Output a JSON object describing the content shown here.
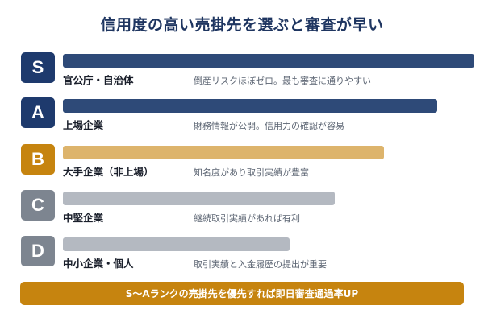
{
  "title": "信用度の高い売掛先を選ぶと審査が早い",
  "colors": {
    "navy": "#1e3a6d",
    "gold": "#c6840f",
    "gold_bar": "#ddb46c",
    "gray": "#7d8590",
    "gray_bar": "#b4b9c1",
    "blue_bar": "#2e4a78"
  },
  "ranks": [
    {
      "grade": "S",
      "label": "官公庁・自治体",
      "desc": "倒産リスクほぼゼロ。最も審査に通りやすい",
      "level": 1.0,
      "tone": "navy"
    },
    {
      "grade": "A",
      "label": "上場企業",
      "desc": "財務情報が公開。信用力の確認が容易",
      "level": 0.91,
      "tone": "navy"
    },
    {
      "grade": "B",
      "label": "大手企業（非上場）",
      "desc": "知名度があり取引実績が豊富",
      "level": 0.78,
      "tone": "gold"
    },
    {
      "grade": "C",
      "label": "中堅企業",
      "desc": "継続取引実績があれば有利",
      "level": 0.66,
      "tone": "gray"
    },
    {
      "grade": "D",
      "label": "中小企業・個人",
      "desc": "取引実績と入金履歴の提出が重要",
      "level": 0.55,
      "tone": "gray"
    }
  ],
  "banner": "S〜Aランクの売掛先を優先すれば即日審査通過率UP"
}
